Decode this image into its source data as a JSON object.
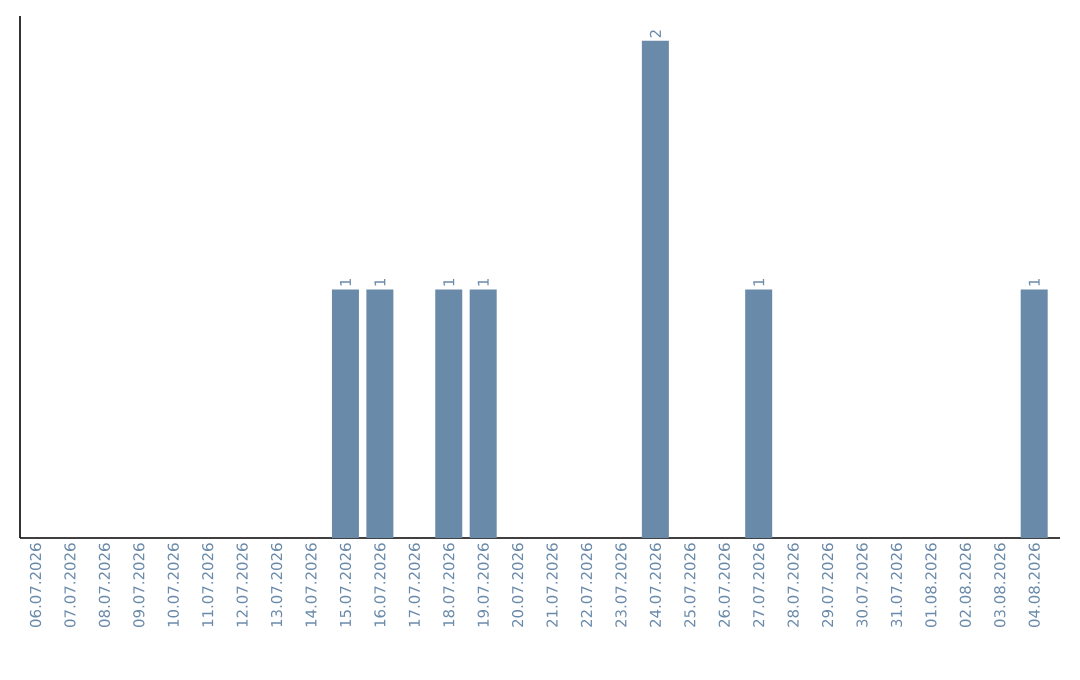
{
  "chart_data": {
    "type": "bar",
    "categories": [
      "06.07.2026",
      "07.07.2026",
      "08.07.2026",
      "09.07.2026",
      "10.07.2026",
      "11.07.2026",
      "12.07.2026",
      "13.07.2026",
      "14.07.2026",
      "15.07.2026",
      "16.07.2026",
      "17.07.2026",
      "18.07.2026",
      "19.07.2026",
      "20.07.2026",
      "21.07.2026",
      "22.07.2026",
      "23.07.2026",
      "24.07.2026",
      "25.07.2026",
      "26.07.2026",
      "27.07.2026",
      "28.07.2026",
      "29.07.2026",
      "30.07.2026",
      "31.07.2026",
      "01.08.2026",
      "02.08.2026",
      "03.08.2026",
      "04.08.2026"
    ],
    "values": [
      0,
      0,
      0,
      0,
      0,
      0,
      0,
      0,
      0,
      1,
      1,
      0,
      1,
      1,
      0,
      0,
      0,
      0,
      2,
      0,
      0,
      1,
      0,
      0,
      0,
      0,
      0,
      0,
      0,
      1
    ],
    "value_labels": [
      null,
      null,
      null,
      null,
      null,
      null,
      null,
      null,
      null,
      "1",
      "1",
      null,
      "1",
      "1",
      null,
      null,
      null,
      null,
      "2",
      null,
      null,
      "1",
      null,
      null,
      null,
      null,
      null,
      null,
      null,
      "1"
    ],
    "color": "#6a8aaa"
  }
}
